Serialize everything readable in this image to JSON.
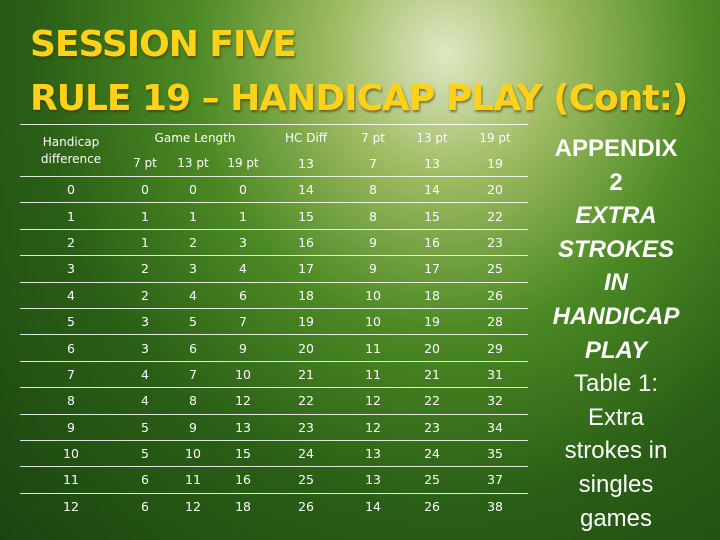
{
  "title_line1": "SESSION FIVE",
  "title_line2": "RULE 19 – HANDICAP PLAY (Cont:)",
  "table": {
    "hc_header": "Handicap difference",
    "game_length_header": "Game Length",
    "game_length_cols": [
      "7 pt",
      "13 pt",
      "19 pt"
    ],
    "hcdiff_header": "HC Diff",
    "hcdiff_cols": [
      "7 pt",
      "13 pt",
      "19 pt"
    ],
    "first_row": [
      "13",
      "7",
      "13",
      "19"
    ],
    "rows": [
      [
        "0",
        "0",
        "0",
        "0",
        "14",
        "8",
        "14",
        "20"
      ],
      [
        "1",
        "1",
        "1",
        "1",
        "15",
        "8",
        "15",
        "22"
      ],
      [
        "2",
        "1",
        "2",
        "3",
        "16",
        "9",
        "16",
        "23"
      ],
      [
        "3",
        "2",
        "3",
        "4",
        "17",
        "9",
        "17",
        "25"
      ],
      [
        "4",
        "2",
        "4",
        "6",
        "18",
        "10",
        "18",
        "26"
      ],
      [
        "5",
        "3",
        "5",
        "7",
        "19",
        "10",
        "19",
        "28"
      ],
      [
        "6",
        "3",
        "6",
        "9",
        "20",
        "11",
        "20",
        "29"
      ],
      [
        "7",
        "4",
        "7",
        "10",
        "21",
        "11",
        "21",
        "31"
      ],
      [
        "8",
        "4",
        "8",
        "12",
        "22",
        "12",
        "22",
        "32"
      ],
      [
        "9",
        "5",
        "9",
        "13",
        "23",
        "12",
        "23",
        "34"
      ],
      [
        "10",
        "5",
        "10",
        "15",
        "24",
        "13",
        "24",
        "35"
      ],
      [
        "11",
        "6",
        "11",
        "16",
        "25",
        "13",
        "25",
        "37"
      ],
      [
        "12",
        "6",
        "12",
        "18",
        "26",
        "14",
        "26",
        "38"
      ]
    ]
  },
  "appendix": {
    "line1": "APPENDIX",
    "line2": "2",
    "line3": "EXTRA",
    "line4": "STROKES",
    "line5": "IN",
    "line6": "HANDICAP",
    "line7": "PLAY",
    "line8": "Table 1:",
    "line9": "Extra",
    "line10": "strokes in",
    "line11": "singles",
    "line12": "games"
  },
  "colors": {
    "title": "#ffd21a",
    "text": "#ffffff",
    "background_dark": "#1c4410",
    "background_light": "#dfe7c4"
  }
}
